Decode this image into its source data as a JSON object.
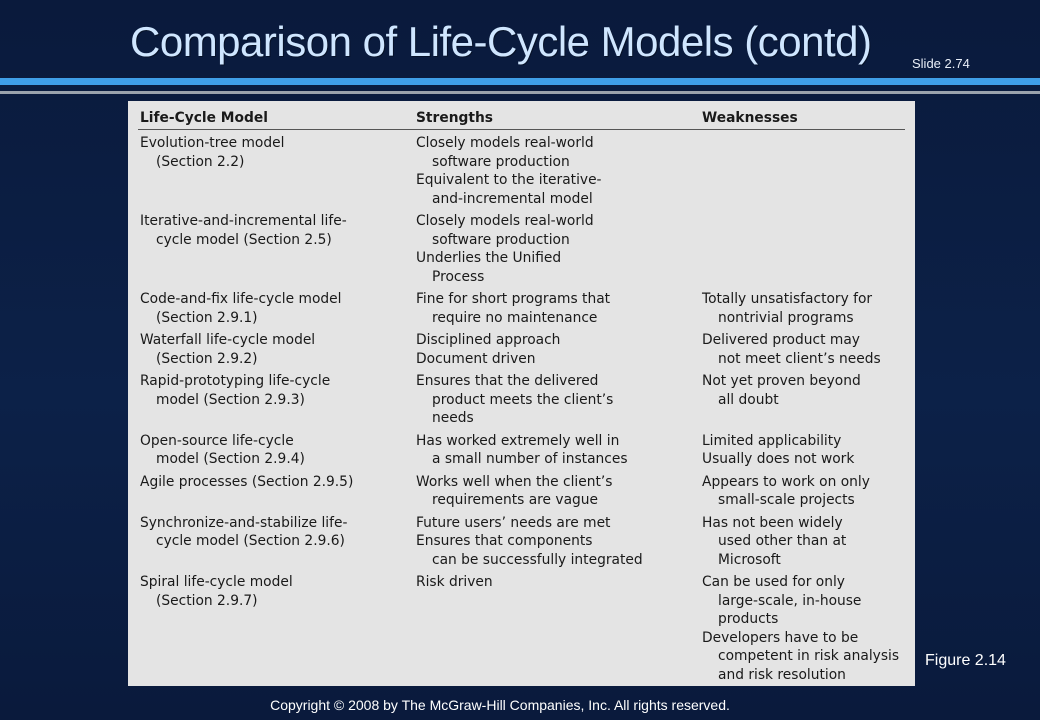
{
  "slide": {
    "title": "Comparison of Life-Cycle Models (contd)",
    "slide_number": "Slide 2.74",
    "figure_label": "Figure 2.14",
    "copyright": "Copyright © 2008 by The McGraw-Hill Companies, Inc.  All rights reserved."
  },
  "table": {
    "headers": [
      "Life-Cycle Model",
      "Strengths",
      "Weaknesses"
    ],
    "rows": [
      {
        "model": [
          "Evolution-tree model",
          "(Section 2.2)"
        ],
        "strengths": [
          "Closely models real-world",
          "software production",
          "Equivalent to the iterative-",
          "and-incremental model"
        ],
        "weaknesses": []
      },
      {
        "model": [
          "Iterative-and-incremental life-",
          "cycle model (Section 2.5)"
        ],
        "strengths": [
          "Closely models real-world",
          "software production",
          "Underlies the Unified",
          "Process"
        ],
        "weaknesses": []
      },
      {
        "model": [
          "Code-and-fix life-cycle model",
          "(Section 2.9.1)"
        ],
        "strengths": [
          "Fine for short programs that",
          "require no maintenance"
        ],
        "weaknesses": [
          "Totally unsatisfactory for",
          "nontrivial programs"
        ]
      },
      {
        "model": [
          "Waterfall life-cycle model",
          "(Section 2.9.2)"
        ],
        "strengths": [
          "Disciplined approach",
          "Document driven"
        ],
        "weaknesses": [
          "Delivered product may",
          "not meet client’s needs"
        ]
      },
      {
        "model": [
          "Rapid-prototyping life-cycle",
          "model (Section 2.9.3)"
        ],
        "strengths": [
          "Ensures that the delivered",
          "product meets the client’s",
          "needs"
        ],
        "weaknesses": [
          "Not yet proven beyond",
          "all doubt"
        ]
      },
      {
        "model": [
          "Open-source life-cycle",
          "model (Section 2.9.4)"
        ],
        "strengths": [
          "Has worked extremely well in",
          "a small number of instances"
        ],
        "weaknesses": [
          "Limited applicability",
          "Usually does not work"
        ]
      },
      {
        "model": [
          "Agile processes (Section 2.9.5)"
        ],
        "strengths": [
          "Works well when the client’s",
          "requirements are vague"
        ],
        "weaknesses": [
          "Appears to work on only",
          "small-scale projects"
        ]
      },
      {
        "model": [
          "Synchronize-and-stabilize life-",
          "cycle model (Section 2.9.6)"
        ],
        "strengths": [
          "Future users’ needs are met",
          "Ensures that components",
          "can be successfully integrated"
        ],
        "weaknesses": [
          "Has not been widely",
          "used other than at",
          "Microsoft"
        ]
      },
      {
        "model": [
          "Spiral life-cycle model",
          "(Section 2.9.7)"
        ],
        "strengths": [
          "Risk driven"
        ],
        "weaknesses": [
          "Can be used for only",
          "large-scale, in-house",
          "products",
          "Developers have to be",
          "competent in risk analysis",
          "and risk resolution"
        ]
      }
    ]
  }
}
